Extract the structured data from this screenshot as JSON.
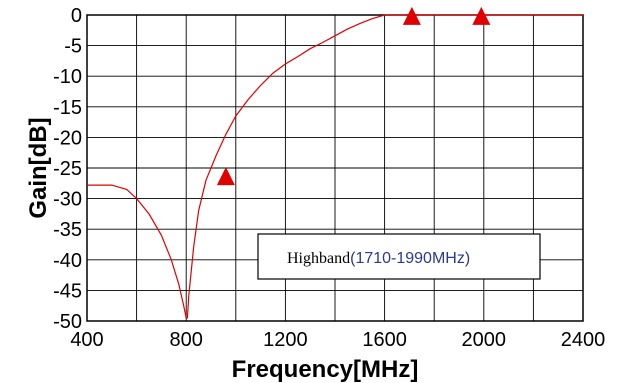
{
  "chart_data": {
    "type": "line",
    "xlabel": "Frequency[MHz]",
    "ylabel": "Gain[dB]",
    "xlim": [
      400,
      2400
    ],
    "ylim": [
      -50,
      0
    ],
    "x_ticks": [
      "400",
      "800",
      "1200",
      "1600",
      "2000",
      "2400"
    ],
    "y_ticks": [
      "0",
      "-5",
      "-10",
      "-15",
      "-20",
      "-25",
      "-30",
      "-35",
      "-40",
      "-45",
      "-50"
    ],
    "grid": true,
    "line_color": "#e00000",
    "marker_color": "#e00000",
    "series": [
      {
        "x": [
          400,
          500,
          560,
          600,
          650,
          700,
          740,
          770,
          790,
          800,
          805,
          810,
          830,
          850,
          880,
          920,
          960,
          1000,
          1050,
          1100,
          1150,
          1200,
          1250,
          1300,
          1350,
          1400,
          1450,
          1500,
          1550,
          1600,
          1650,
          1700,
          1750,
          1800,
          1900,
          2000,
          2100,
          2200,
          2300,
          2400
        ],
        "y": [
          -27.8,
          -27.8,
          -28.5,
          -30,
          -32.5,
          -36,
          -40,
          -44,
          -47.5,
          -49.5,
          -49.5,
          -46,
          -38,
          -32,
          -27,
          -23,
          -19.5,
          -16.5,
          -13.8,
          -11.5,
          -9.5,
          -8,
          -6.8,
          -5.5,
          -4.5,
          -3.4,
          -2.3,
          -1.4,
          -0.6,
          0,
          0,
          0,
          0,
          0,
          0,
          0,
          0,
          0,
          0,
          0
        ]
      }
    ],
    "markers": [
      {
        "x": 960,
        "y": -26.5
      },
      {
        "x": 1710,
        "y": -0.3
      },
      {
        "x": 1990,
        "y": -0.3
      }
    ],
    "annotation": {
      "prefix": "Highband",
      "range": "(1710-1990MHz)"
    }
  }
}
